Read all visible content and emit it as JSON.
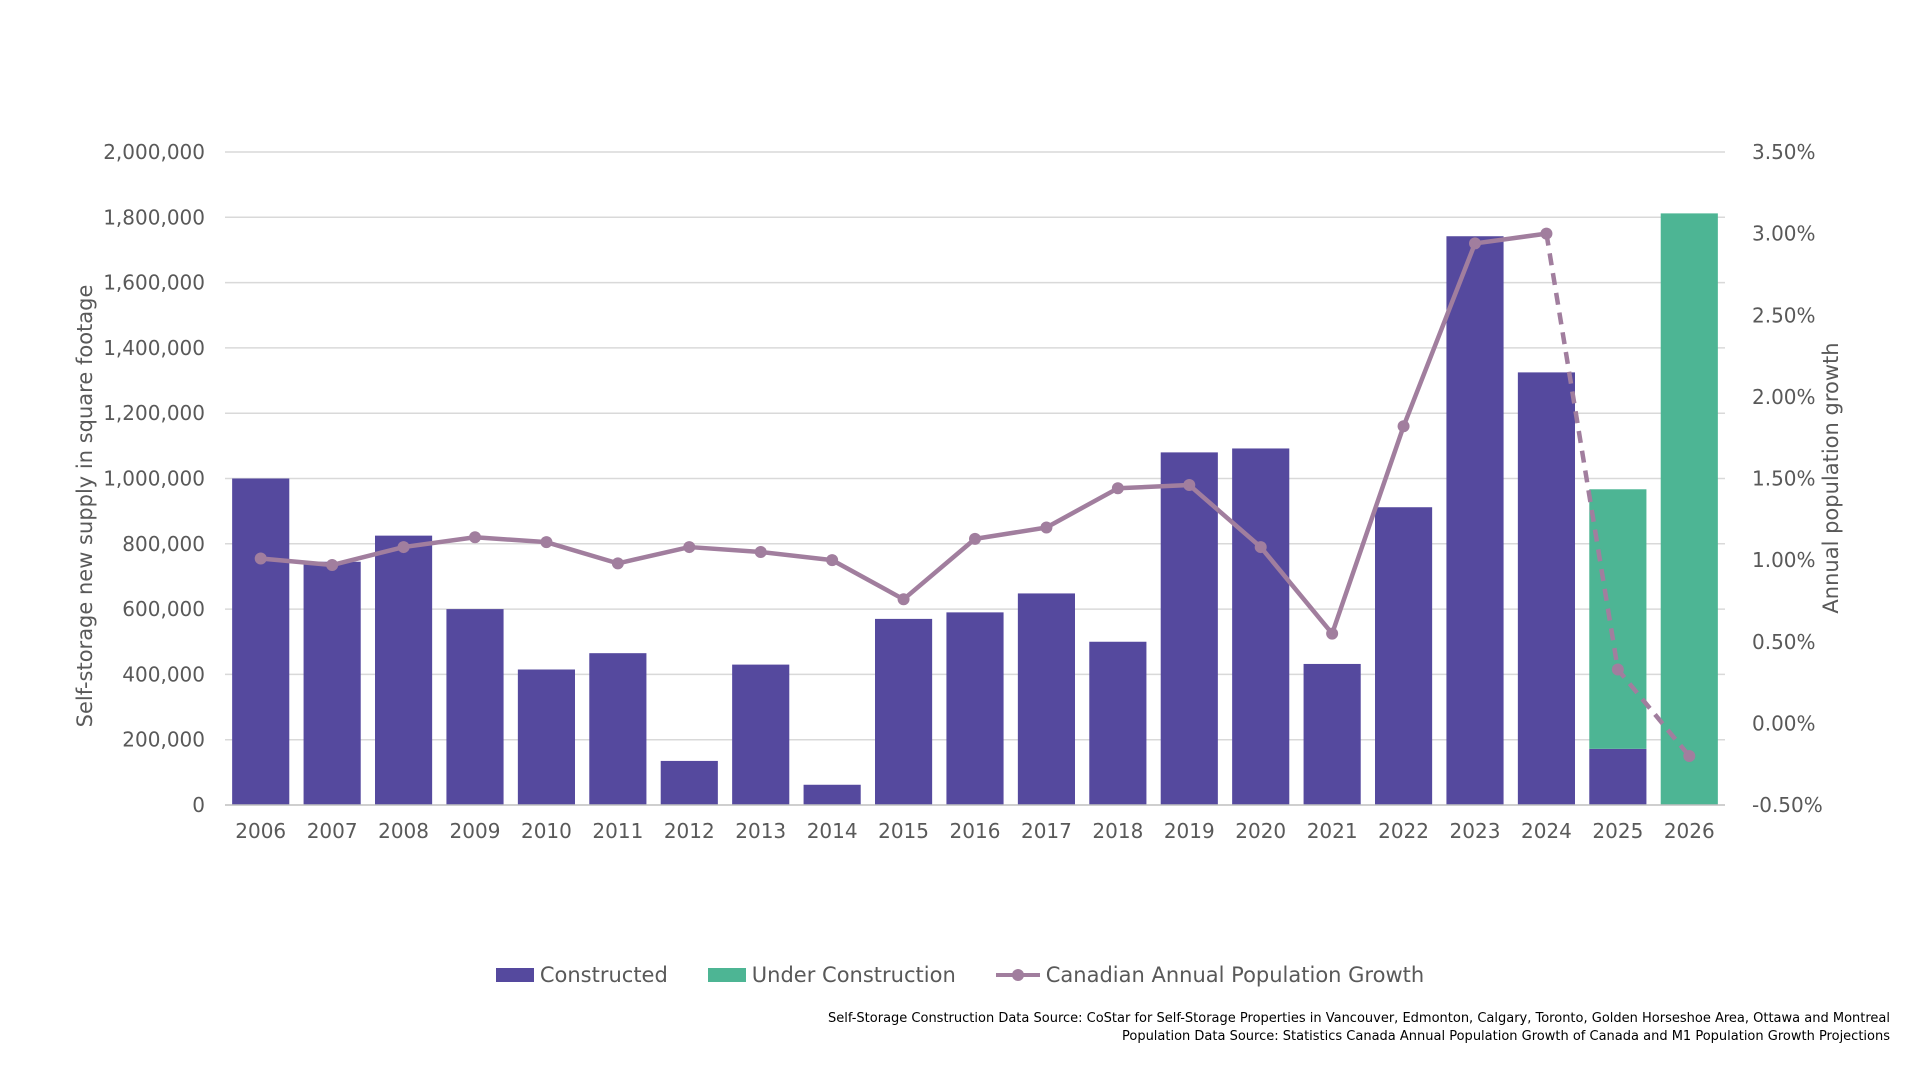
{
  "chart_data": {
    "type": "bar",
    "title": "",
    "categories": [
      "2006",
      "2007",
      "2008",
      "2009",
      "2010",
      "2011",
      "2012",
      "2013",
      "2014",
      "2015",
      "2016",
      "2017",
      "2018",
      "2019",
      "2020",
      "2021",
      "2022",
      "2023",
      "2024",
      "2025",
      "2026"
    ],
    "series": [
      {
        "name": "Constructed",
        "type": "bar",
        "axis": "left",
        "color": "#55499E",
        "values": [
          1000000,
          745000,
          825000,
          600000,
          415000,
          465000,
          135000,
          430000,
          62000,
          570000,
          590000,
          648000,
          500000,
          1080000,
          1092000,
          432000,
          912000,
          1742000,
          1325000,
          172000,
          0
        ]
      },
      {
        "name": "Under Construction",
        "type": "bar",
        "stacked": true,
        "axis": "left",
        "color": "#4DB594",
        "values": [
          0,
          0,
          0,
          0,
          0,
          0,
          0,
          0,
          0,
          0,
          0,
          0,
          0,
          0,
          0,
          0,
          0,
          0,
          0,
          795000,
          1812000
        ]
      },
      {
        "name": "Canadian Annual Population Growth",
        "type": "line",
        "axis": "right",
        "color": "#A17E9E",
        "values": [
          1.01,
          0.97,
          1.08,
          1.14,
          1.11,
          0.98,
          1.08,
          1.05,
          1.0,
          0.76,
          1.13,
          1.2,
          1.44,
          1.46,
          1.08,
          0.55,
          1.82,
          2.94,
          3.0,
          0.33,
          -0.2
        ],
        "projected_from_index": 18
      }
    ],
    "ylabel": "Self-storage new supply in square footage",
    "ylim": [
      0,
      2000000
    ],
    "yticks": [
      0,
      200000,
      400000,
      600000,
      800000,
      1000000,
      1200000,
      1400000,
      1600000,
      1800000,
      2000000
    ],
    "ytick_labels": [
      "0",
      "200,000",
      "400,000",
      "600,000",
      "800,000",
      "1,000,000",
      "1,200,000",
      "1,400,000",
      "1,600,000",
      "1,800,000",
      "2,000,000"
    ],
    "y2label": "Annual population growth",
    "y2lim": [
      -0.5,
      3.5
    ],
    "y2ticks": [
      -0.5,
      0,
      0.5,
      1.0,
      1.5,
      2.0,
      2.5,
      3.0,
      3.5
    ],
    "y2tick_labels": [
      "-0.50%",
      "0.00%",
      "0.50%",
      "1.00%",
      "1.50%",
      "2.00%",
      "2.50%",
      "3.00%",
      "3.50%"
    ],
    "grid": true,
    "legend": "bottom-center"
  },
  "legend": {
    "constructed": "Constructed",
    "under_construction": "Under Construction",
    "population_growth": "Canadian Annual Population Growth"
  },
  "sources": {
    "line1": "Self-Storage Construction Data Source: CoStar for Self-Storage Properties in Vancouver, Edmonton, Calgary, Toronto, Golden Horseshoe Area, Ottawa and Montreal",
    "line2": "Population Data Source: Statistics Canada Annual Population Growth of Canada and M1 Population Growth Projections"
  }
}
